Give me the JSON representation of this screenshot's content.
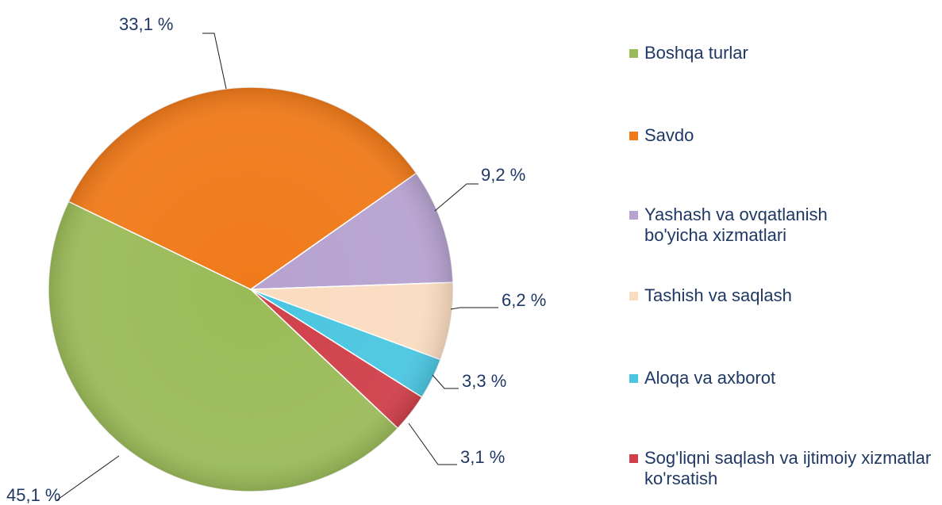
{
  "chart_data": {
    "type": "pie",
    "categories": [
      "Boshqa turlar",
      "Savdo",
      "Yashash va ovqatlanish bo'yicha xizmatlari",
      "Tashish va saqlash",
      "Aloqa va axborot",
      "Sog'liqni saqlash va ijtimoiy xizmatlar ko'rsatish"
    ],
    "values": [
      45.1,
      33.1,
      9.2,
      6.2,
      3.3,
      3.1
    ],
    "value_labels": [
      "45,1 %",
      "33,1 %",
      "9,2 %",
      "6,2 %",
      "3,3 %",
      "3,1 %"
    ],
    "colors": [
      "#9bbb59",
      "#f07a1a",
      "#b7a2d0",
      "#fadcc0",
      "#4bc6e0",
      "#d0404a"
    ],
    "legend": "right"
  }
}
